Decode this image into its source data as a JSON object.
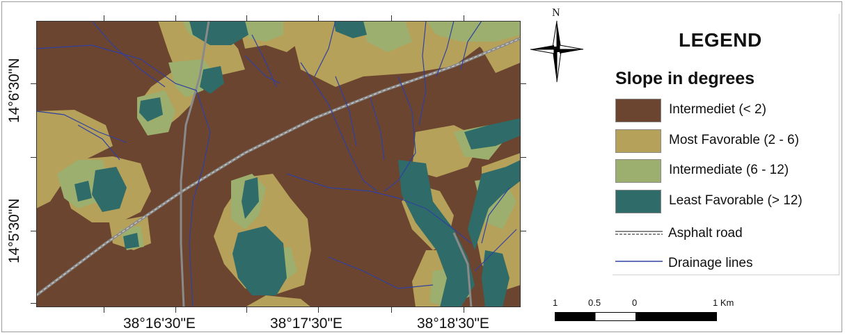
{
  "map": {
    "y_ticks": [
      "14°6'30\"N",
      "14°5'30\"N"
    ],
    "x_ticks": [
      "38°16'30\"E",
      "38°17'30\"E",
      "38°18'30\"E"
    ]
  },
  "legend": {
    "title": "LEGEND",
    "subtitle": "Slope in degrees",
    "classes": [
      {
        "label": "Intermediet (< 2)",
        "color": "#6b4530"
      },
      {
        "label": "Most Favorable (2 - 6)",
        "color": "#b5a15a"
      },
      {
        "label": "Intermediate (6 - 12)",
        "color": "#9caf6e"
      },
      {
        "label": "Least Favorable (> 12)",
        "color": "#2f6b68"
      }
    ],
    "road_label": "Asphalt road",
    "drainage_label": "Drainage lines"
  },
  "north_arrow": {
    "label": "N"
  },
  "scale_bar": {
    "labels": [
      "1",
      "0.5",
      "0",
      "1 Km"
    ]
  },
  "colors": {
    "road": "#8a8a8a",
    "drainage": "#3040a0"
  }
}
